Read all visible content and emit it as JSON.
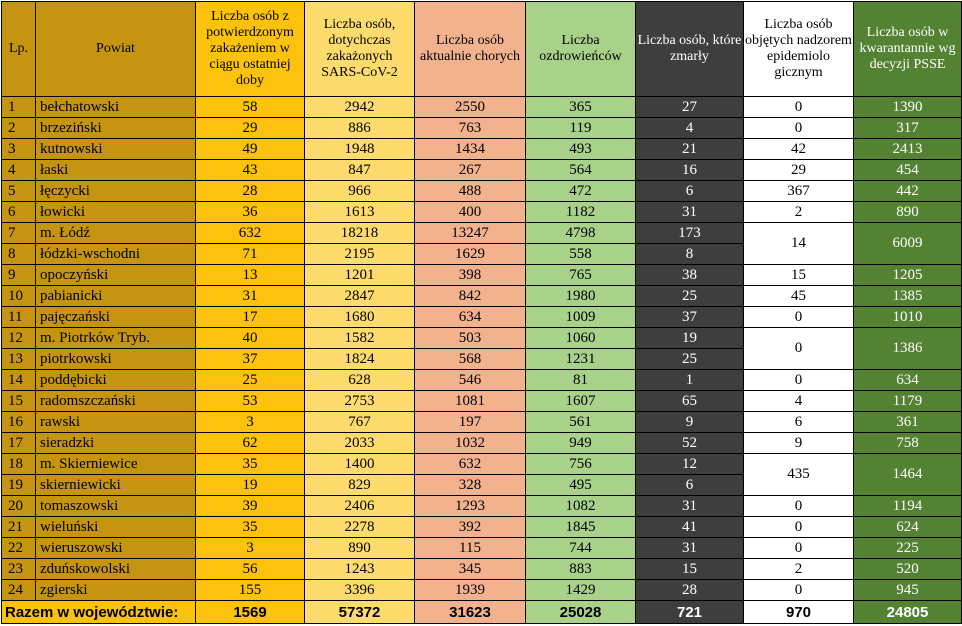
{
  "headers": {
    "lp": "Lp.",
    "powiat": "Powiat",
    "zakazeni_doba": "Liczba osób z potwierdzonym zakażeniem w ciągu ostatniej doby",
    "zakazeni_total": "Liczba osób, dotychczas zakażonych SARS-CoV-2",
    "chorzy": "Liczba osób aktualnie chorych",
    "ozdrowiency": "Liczba ozdrowieńców",
    "zmarli": "Liczba osób, które zmarły",
    "nadzor": "Liczba osób objętych nadzorem epidemiolo gicznym",
    "kwarantanna": "Liczba osób w kwarantannie wg decyzji PSSE"
  },
  "rows": [
    {
      "lp": "1",
      "powiat": "bełchatowski",
      "doba": "58",
      "total": "2942",
      "chorzy": "2550",
      "ozdr": "365",
      "zmarli": "27",
      "nadzor": "0",
      "kwar": "1390"
    },
    {
      "lp": "2",
      "powiat": "brzeziński",
      "doba": "29",
      "total": "886",
      "chorzy": "763",
      "ozdr": "119",
      "zmarli": "4",
      "nadzor": "0",
      "kwar": "317"
    },
    {
      "lp": "3",
      "powiat": "kutnowski",
      "doba": "49",
      "total": "1948",
      "chorzy": "1434",
      "ozdr": "493",
      "zmarli": "21",
      "nadzor": "42",
      "kwar": "2413"
    },
    {
      "lp": "4",
      "powiat": "łaski",
      "doba": "43",
      "total": "847",
      "chorzy": "267",
      "ozdr": "564",
      "zmarli": "16",
      "nadzor": "29",
      "kwar": "454"
    },
    {
      "lp": "5",
      "powiat": "łęczycki",
      "doba": "28",
      "total": "966",
      "chorzy": "488",
      "ozdr": "472",
      "zmarli": "6",
      "nadzor": "367",
      "kwar": "442"
    },
    {
      "lp": "6",
      "powiat": "łowicki",
      "doba": "36",
      "total": "1613",
      "chorzy": "400",
      "ozdr": "1182",
      "zmarli": "31",
      "nadzor": "2",
      "kwar": "890"
    },
    {
      "lp": "7",
      "powiat": "m. Łódź",
      "doba": "632",
      "total": "18218",
      "chorzy": "13247",
      "ozdr": "4798",
      "zmarli": "173",
      "nadzor": "14",
      "kwar": "6009"
    },
    {
      "lp": "8",
      "powiat": "łódzki-wschodni",
      "doba": "71",
      "total": "2195",
      "chorzy": "1629",
      "ozdr": "558",
      "zmarli": "8"
    },
    {
      "lp": "9",
      "powiat": "opoczyński",
      "doba": "13",
      "total": "1201",
      "chorzy": "398",
      "ozdr": "765",
      "zmarli": "38",
      "nadzor": "15",
      "kwar": "1205"
    },
    {
      "lp": "10",
      "powiat": "pabianicki",
      "doba": "31",
      "total": "2847",
      "chorzy": "842",
      "ozdr": "1980",
      "zmarli": "25",
      "nadzor": "45",
      "kwar": "1385"
    },
    {
      "lp": "11",
      "powiat": "pajęczański",
      "doba": "17",
      "total": "1680",
      "chorzy": "634",
      "ozdr": "1009",
      "zmarli": "37",
      "nadzor": "0",
      "kwar": "1010"
    },
    {
      "lp": "12",
      "powiat": "m. Piotrków Tryb.",
      "doba": "40",
      "total": "1582",
      "chorzy": "503",
      "ozdr": "1060",
      "zmarli": "19",
      "nadzor": "0",
      "kwar": "1386"
    },
    {
      "lp": "13",
      "powiat": "piotrkowski",
      "doba": "37",
      "total": "1824",
      "chorzy": "568",
      "ozdr": "1231",
      "zmarli": "25"
    },
    {
      "lp": "14",
      "powiat": "poddębicki",
      "doba": "25",
      "total": "628",
      "chorzy": "546",
      "ozdr": "81",
      "zmarli": "1",
      "nadzor": "0",
      "kwar": "634"
    },
    {
      "lp": "15",
      "powiat": "radomszczański",
      "doba": "53",
      "total": "2753",
      "chorzy": "1081",
      "ozdr": "1607",
      "zmarli": "65",
      "nadzor": "4",
      "kwar": "1179"
    },
    {
      "lp": "16",
      "powiat": "rawski",
      "doba": "3",
      "total": "767",
      "chorzy": "197",
      "ozdr": "561",
      "zmarli": "9",
      "nadzor": "6",
      "kwar": "361"
    },
    {
      "lp": "17",
      "powiat": "sieradzki",
      "doba": "62",
      "total": "2033",
      "chorzy": "1032",
      "ozdr": "949",
      "zmarli": "52",
      "nadzor": "9",
      "kwar": "758"
    },
    {
      "lp": "18",
      "powiat": "m. Skierniewice",
      "doba": "35",
      "total": "1400",
      "chorzy": "632",
      "ozdr": "756",
      "zmarli": "12",
      "nadzor": "435",
      "kwar": "1464"
    },
    {
      "lp": "19",
      "powiat": "skierniewicki",
      "doba": "19",
      "total": "829",
      "chorzy": "328",
      "ozdr": "495",
      "zmarli": "6"
    },
    {
      "lp": "20",
      "powiat": "tomaszowski",
      "doba": "39",
      "total": "2406",
      "chorzy": "1293",
      "ozdr": "1082",
      "zmarli": "31",
      "nadzor": "0",
      "kwar": "1194"
    },
    {
      "lp": "21",
      "powiat": "wieluński",
      "doba": "35",
      "total": "2278",
      "chorzy": "392",
      "ozdr": "1845",
      "zmarli": "41",
      "nadzor": "0",
      "kwar": "624"
    },
    {
      "lp": "22",
      "powiat": "wieruszowski",
      "doba": "3",
      "total": "890",
      "chorzy": "115",
      "ozdr": "744",
      "zmarli": "31",
      "nadzor": "0",
      "kwar": "225"
    },
    {
      "lp": "23",
      "powiat": "zduńskowolski",
      "doba": "56",
      "total": "1243",
      "chorzy": "345",
      "ozdr": "883",
      "zmarli": "15",
      "nadzor": "2",
      "kwar": "520"
    },
    {
      "lp": "24",
      "powiat": "zgierski",
      "doba": "155",
      "total": "3396",
      "chorzy": "1939",
      "ozdr": "1429",
      "zmarli": "28",
      "nadzor": "0",
      "kwar": "945"
    }
  ],
  "totals": {
    "label": "Razem w województwie:",
    "doba": "1569",
    "total": "57372",
    "chorzy": "31623",
    "ozdr": "25028",
    "zmarli": "721",
    "nadzor": "970",
    "kwar": "24805"
  },
  "colors": {
    "powiat": "#c59410",
    "doba": "#fdc20d",
    "total": "#fedb6d",
    "chorzy": "#f3b28e",
    "ozdr": "#a8d18a",
    "zmarli": "#3e3e3e",
    "nadzor": "#ffffff",
    "kwar": "#538233"
  }
}
